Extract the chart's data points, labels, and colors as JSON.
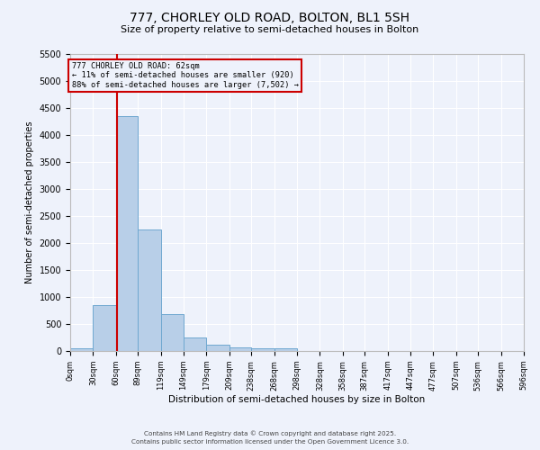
{
  "title": "777, CHORLEY OLD ROAD, BOLTON, BL1 5SH",
  "subtitle": "Size of property relative to semi-detached houses in Bolton",
  "xlabel": "Distribution of semi-detached houses by size in Bolton",
  "ylabel": "Number of semi-detached properties",
  "bar_color": "#b8cfe8",
  "bar_edge_color": "#6fa8d0",
  "background_color": "#eef2fb",
  "grid_color": "#ffffff",
  "property_size": 62,
  "annotation_title": "777 CHORLEY OLD ROAD: 62sqm",
  "annotation_line1": "← 11% of semi-detached houses are smaller (920)",
  "annotation_line2": "88% of semi-detached houses are larger (7,502) →",
  "annotation_box_color": "#cc0000",
  "red_line_color": "#cc0000",
  "bin_edges": [
    0,
    30,
    60,
    89,
    119,
    149,
    179,
    209,
    238,
    268,
    298,
    328,
    358,
    387,
    417,
    447,
    477,
    507,
    536,
    566,
    596
  ],
  "bin_labels": [
    "0sqm",
    "30sqm",
    "60sqm",
    "89sqm",
    "119sqm",
    "149sqm",
    "179sqm",
    "209sqm",
    "238sqm",
    "268sqm",
    "298sqm",
    "328sqm",
    "358sqm",
    "387sqm",
    "417sqm",
    "447sqm",
    "477sqm",
    "507sqm",
    "536sqm",
    "566sqm",
    "596sqm"
  ],
  "bar_heights": [
    50,
    850,
    4350,
    2250,
    680,
    250,
    120,
    70,
    50,
    50,
    0,
    0,
    0,
    0,
    0,
    0,
    0,
    0,
    0,
    0
  ],
  "ylim": [
    0,
    5500
  ],
  "yticks": [
    0,
    500,
    1000,
    1500,
    2000,
    2500,
    3000,
    3500,
    4000,
    4500,
    5000,
    5500
  ],
  "footer_line1": "Contains HM Land Registry data © Crown copyright and database right 2025.",
  "footer_line2": "Contains public sector information licensed under the Open Government Licence 3.0."
}
